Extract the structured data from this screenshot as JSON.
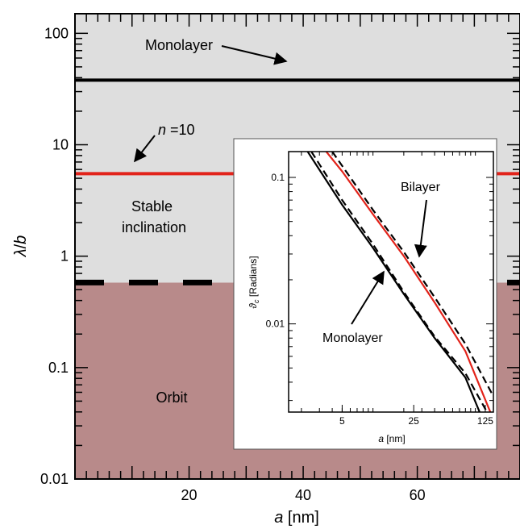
{
  "chart_data": [
    {
      "type": "line",
      "xlabel": {
        "var": "a",
        "unit": " [nm]"
      },
      "ylabel": {
        "var": "λ",
        "sep": "/",
        "var2": "b"
      },
      "xlim": [
        0,
        78
      ],
      "ylim": [
        0.01,
        150
      ],
      "yscale": "log",
      "x_ticks": [
        20,
        40,
        60
      ],
      "y_ticks": [
        {
          "value": 0.01,
          "label": "0.01"
        },
        {
          "value": 0.1,
          "label": "0.1"
        },
        {
          "value": 1,
          "label": "1"
        },
        {
          "value": 10,
          "label": "10"
        },
        {
          "value": 100,
          "label": "100"
        }
      ],
      "regions": [
        {
          "label_lines": [
            "Orbit"
          ],
          "y_range": [
            0.01,
            0.58
          ],
          "color": "#b88a8a"
        },
        {
          "label_lines": [
            "Stable",
            "inclination"
          ],
          "y_range": [
            0.58,
            150
          ],
          "color": "#dedede"
        }
      ],
      "lines": [
        {
          "label": "Monolayer",
          "y": 38,
          "color": "#000000",
          "style": "solid"
        },
        {
          "label_var": "n",
          "label_rest": " =10",
          "y": 5.5,
          "color": "#e2231a",
          "style": "solid"
        },
        {
          "y": 0.58,
          "color": "#000000",
          "style": "dashed"
        }
      ],
      "grid": false
    },
    {
      "type": "line",
      "inset": true,
      "xlabel": {
        "var": "a",
        "unit": " [nm]"
      },
      "ylabel": {
        "var": "ϑ",
        "sub": "c",
        "unit": " [Radians]"
      },
      "xscale": "log",
      "yscale": "log",
      "xlim": [
        1.5,
        150
      ],
      "ylim": [
        0.0025,
        0.15
      ],
      "x_ticks": [
        {
          "value": 5,
          "label": "5"
        },
        {
          "value": 25,
          "label": "25"
        },
        {
          "value": 125,
          "label": "125"
        }
      ],
      "y_ticks": [
        {
          "value": 0.01,
          "label": "0.01"
        },
        {
          "value": 0.1,
          "label": "0.1"
        }
      ],
      "annotations": [
        "Bilayer",
        "Monolayer"
      ],
      "series": [
        {
          "x": [
            2.3,
            5,
            10,
            20,
            40,
            80,
            110
          ],
          "y": [
            0.15,
            0.065,
            0.033,
            0.016,
            0.008,
            0.0043,
            0.0025
          ],
          "color": "#000000",
          "style": "solid"
        },
        {
          "x": [
            2.5,
            5,
            10,
            20,
            40,
            80,
            130
          ],
          "y": [
            0.15,
            0.07,
            0.035,
            0.0165,
            0.0082,
            0.0046,
            0.0025
          ],
          "color": "#000000",
          "style": "dashed"
        },
        {
          "x": [
            3.5,
            5,
            10,
            20,
            40,
            80,
            140
          ],
          "y": [
            0.15,
            0.11,
            0.056,
            0.029,
            0.014,
            0.0065,
            0.0025
          ],
          "color": "#e2231a",
          "style": "solid"
        },
        {
          "x": [
            4.0,
            5,
            10,
            20,
            40,
            80,
            150
          ],
          "y": [
            0.15,
            0.12,
            0.06,
            0.031,
            0.0152,
            0.0073,
            0.0032
          ],
          "color": "#000000",
          "style": "dashed"
        }
      ]
    }
  ]
}
